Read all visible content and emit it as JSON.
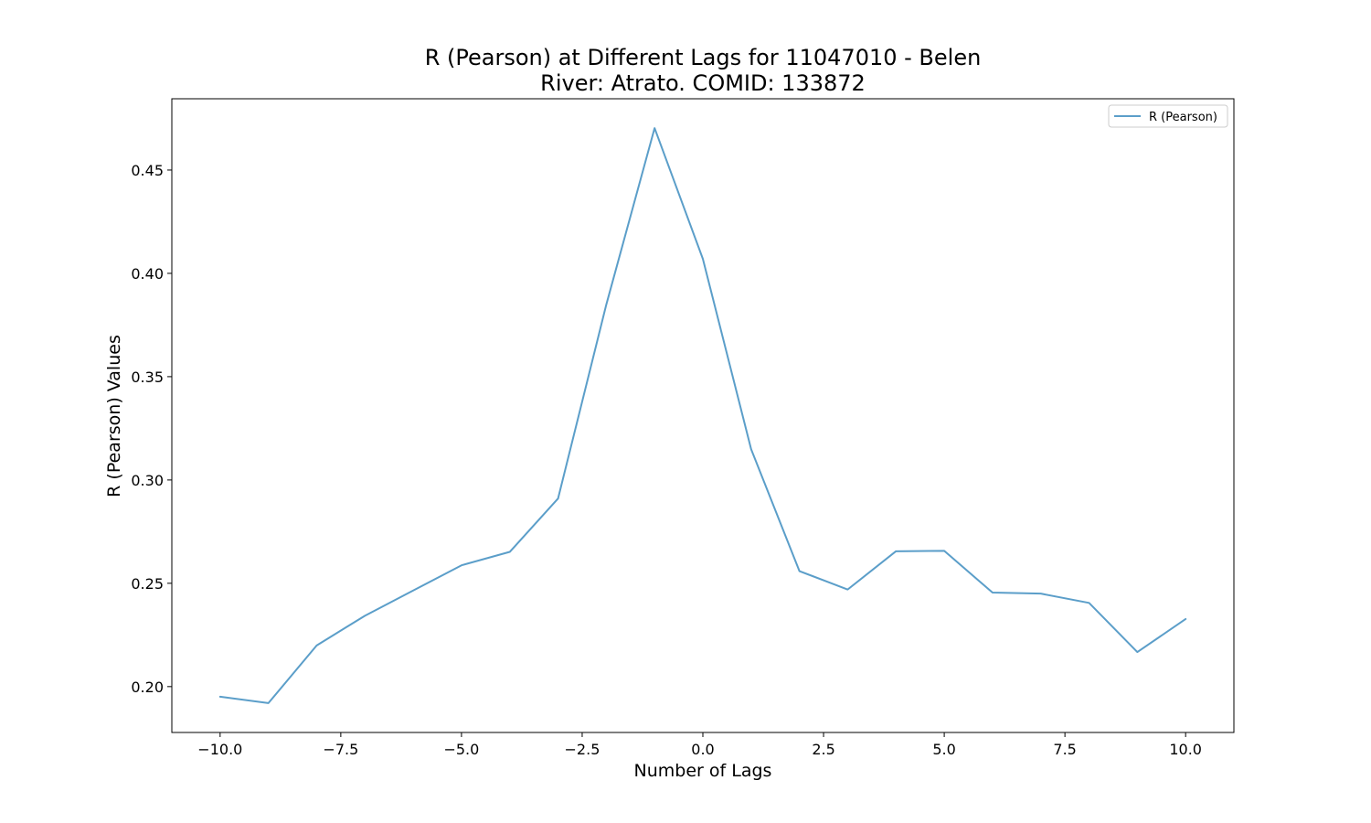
{
  "chart_data": {
    "type": "line",
    "title_line1": "R (Pearson) at Different Lags for 11047010 - Belen",
    "title_line2": "River: Atrato. COMID: 133872",
    "xlabel": "Number of Lags",
    "ylabel": "R (Pearson) Values",
    "xlim": [
      -11.0,
      11.0
    ],
    "ylim": [
      0.1778,
      0.4845
    ],
    "x_ticks": [
      -10.0,
      -7.5,
      -5.0,
      -2.5,
      0.0,
      2.5,
      5.0,
      7.5,
      10.0
    ],
    "x_tick_labels": [
      "−10.0",
      "−7.5",
      "−5.0",
      "−2.5",
      "0.0",
      "2.5",
      "5.0",
      "7.5",
      "10.0"
    ],
    "y_ticks": [
      0.2,
      0.25,
      0.3,
      0.35,
      0.4,
      0.45
    ],
    "y_tick_labels": [
      "0.20",
      "0.25",
      "0.30",
      "0.35",
      "0.40",
      "0.45"
    ],
    "grid": false,
    "legend_position": "top-right",
    "series": [
      {
        "name": "R (Pearson)",
        "color": "#5b9ec9",
        "x": [
          -10,
          -9,
          -8,
          -7,
          -6,
          -5,
          -4,
          -3,
          -2,
          -1,
          0,
          1,
          2,
          3,
          4,
          5,
          6,
          7,
          8,
          9,
          10
        ],
        "values": [
          0.1951,
          0.192,
          0.2199,
          0.2343,
          0.2465,
          0.2587,
          0.2652,
          0.291,
          0.3849,
          0.4703,
          0.407,
          0.3149,
          0.2559,
          0.247,
          0.2655,
          0.2657,
          0.2455,
          0.245,
          0.2405,
          0.2167,
          0.2327
        ]
      }
    ]
  }
}
